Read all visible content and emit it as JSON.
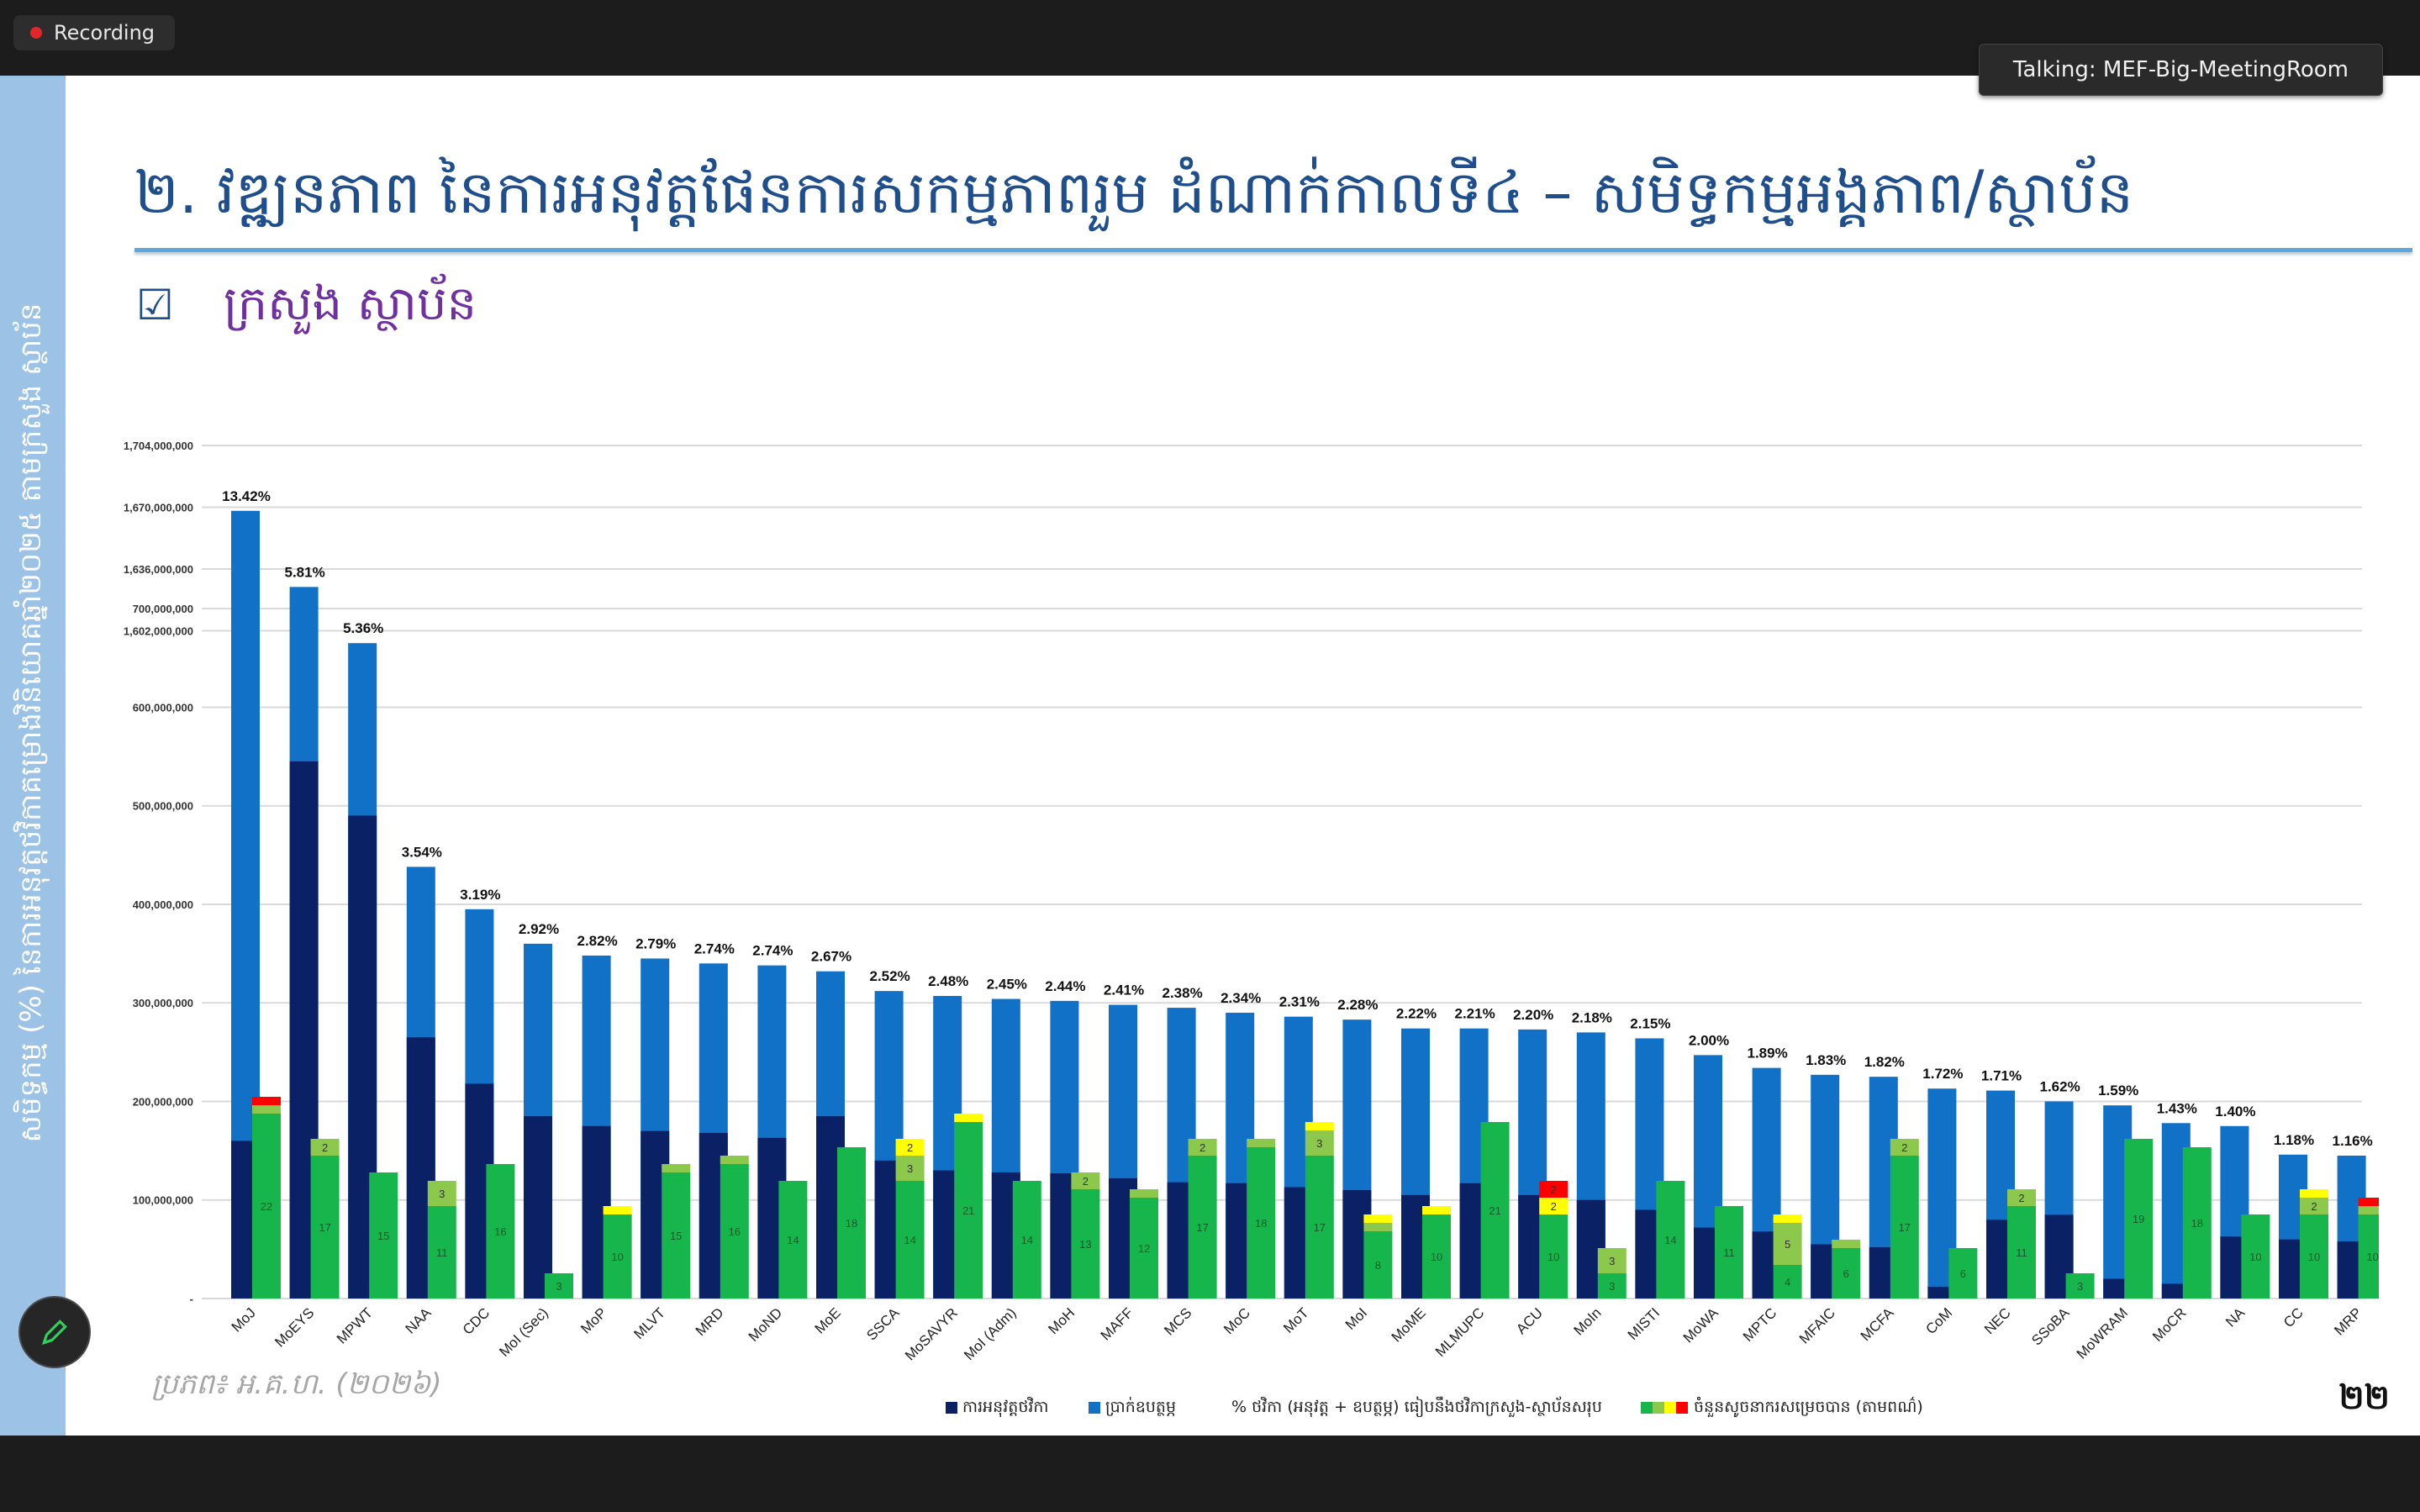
{
  "recording": {
    "label": "Recording"
  },
  "talking": {
    "label": "Talking: MEF-Big-MeetingRoom"
  },
  "slide": {
    "title": "២. វឌ្ឍនភាព នៃការអនុវត្តផែនការសកម្មភាពរួម ដំណាក់កាលទី៤ – សមិទ្ធកម្មអង្គភាព/ស្ថាប័ន",
    "subtitle": "ក្រសួង ស្ថាប័ន",
    "side_text": "សមិទ្ធកម្ម (%) នៃការអនុវត្តថវិកាគម្រោងវិនិយោគឆ្នាំ២០២៥ តាមក្រសួង ស្ថាប័ន",
    "source": "ប្រភព៖ អ.គ.ហ. (២០២៦)",
    "page_number": "២២"
  },
  "colors": {
    "executed": "#0a2166",
    "allocated": "#1071c6",
    "green": "#17b64c",
    "lightgreen": "#8cc84c",
    "yellow": "#ffff00",
    "red": "#ff0000",
    "grid": "#d9d9d9"
  },
  "chart_data": {
    "type": "bar",
    "title": "",
    "y_ticks_upper": [
      "1,704,000,000",
      "1,670,000,000",
      "1,636,000,000",
      "1,602,000,000"
    ],
    "y_ticks_lower": [
      "700,000,000",
      "600,000,000",
      "500,000,000",
      "400,000,000",
      "300,000,000",
      "200,000,000",
      "100,000,000",
      "-"
    ],
    "ylim_upper": [
      1580000000,
      1704000000
    ],
    "ylim_lower": [
      0,
      730000000
    ],
    "categories": [
      "MoJ",
      "MoEYS",
      "MPWT",
      "NAA",
      "CDC",
      "MoI (Sec)",
      "MoP",
      "MLVT",
      "MRD",
      "MoND",
      "MoE",
      "SSCA",
      "MoSAVYR",
      "MoI (Adm)",
      "MoH",
      "MAFF",
      "MCS",
      "MoC",
      "MoT",
      "MoI",
      "MoME",
      "MLMUPC",
      "ACU",
      "MoIn",
      "MISTI",
      "MoWA",
      "MPTC",
      "MFAIC",
      "MCFA",
      "CoM",
      "NEC",
      "SSoBA",
      "MoWRAM",
      "MoCR",
      "NA",
      "CC",
      "MRP"
    ],
    "percent_labels": [
      "13.42%",
      "5.81%",
      "5.36%",
      "3.54%",
      "3.19%",
      "2.92%",
      "2.82%",
      "2.79%",
      "2.74%",
      "2.74%",
      "2.67%",
      "2.52%",
      "2.48%",
      "2.45%",
      "2.44%",
      "2.41%",
      "2.38%",
      "2.34%",
      "2.31%",
      "2.28%",
      "2.22%",
      "2.21%",
      "2.20%",
      "2.18%",
      "2.15%",
      "2.00%",
      "1.89%",
      "1.83%",
      "1.82%",
      "1.72%",
      "1.71%",
      "1.62%",
      "1.59%",
      "1.43%",
      "1.40%",
      "1.18%",
      "1.16%"
    ],
    "series": [
      {
        "name": "ការអនុវត្តថវិកា",
        "values": [
          160000000,
          545000000,
          490000000,
          265000000,
          218000000,
          185000000,
          175000000,
          170000000,
          168000000,
          163000000,
          185000000,
          140000000,
          130000000,
          128000000,
          127000000,
          122000000,
          118000000,
          117000000,
          113000000,
          110000000,
          105000000,
          117000000,
          105000000,
          100000000,
          90000000,
          72000000,
          68000000,
          55000000,
          52000000,
          12000000,
          80000000,
          85000000,
          20000000,
          15000000,
          63000000,
          60000000,
          58000000
        ]
      },
      {
        "name": "ប្រាក់ឧបត្ថម្ភ",
        "values": [
          1668000000,
          722000000,
          665000000,
          438000000,
          395000000,
          360000000,
          348000000,
          345000000,
          340000000,
          338000000,
          332000000,
          312000000,
          307000000,
          304000000,
          302000000,
          298000000,
          295000000,
          290000000,
          286000000,
          283000000,
          274000000,
          274000000,
          273000000,
          270000000,
          264000000,
          247000000,
          234000000,
          227000000,
          225000000,
          213000000,
          211000000,
          200000000,
          196000000,
          178000000,
          175000000,
          146000000,
          145000000
        ]
      }
    ],
    "line_series_legend": "% ថវិកា (អនុវត្ត + ឧបត្ថម្ភ) ធៀបនឹងថវិកាក្រសួង-ស្ថាប័នសរុប",
    "indicator_legend": "ចំនួនសូចនាករសម្រេចបាន (តាមពណ៌)",
    "indicator_unit": 10,
    "indicators": [
      {
        "green": 22,
        "lightgreen": 1,
        "yellow": 0,
        "red": 1
      },
      {
        "green": 17,
        "lightgreen": 2,
        "yellow": 0,
        "red": 0
      },
      {
        "green": 15,
        "lightgreen": 0,
        "yellow": 0,
        "red": 0
      },
      {
        "green": 11,
        "lightgreen": 3,
        "yellow": 0,
        "red": 0
      },
      {
        "green": 16,
        "lightgreen": 0,
        "yellow": 0,
        "red": 0
      },
      {
        "green": 3,
        "lightgreen": 0,
        "yellow": 0,
        "red": 0
      },
      {
        "green": 10,
        "lightgreen": 0,
        "yellow": 1,
        "red": 0
      },
      {
        "green": 15,
        "lightgreen": 1,
        "yellow": 0,
        "red": 0
      },
      {
        "green": 16,
        "lightgreen": 1,
        "yellow": 0,
        "red": 0
      },
      {
        "green": 14,
        "lightgreen": 0,
        "yellow": 0,
        "red": 0
      },
      {
        "green": 18,
        "lightgreen": 0,
        "yellow": 0,
        "red": 0
      },
      {
        "green": 14,
        "lightgreen": 3,
        "yellow": 2,
        "red": 0
      },
      {
        "green": 21,
        "lightgreen": 0,
        "yellow": 1,
        "red": 0
      },
      {
        "green": 14,
        "lightgreen": 0,
        "yellow": 0,
        "red": 0
      },
      {
        "green": 13,
        "lightgreen": 2,
        "yellow": 0,
        "red": 0
      },
      {
        "green": 12,
        "lightgreen": 1,
        "yellow": 0,
        "red": 0
      },
      {
        "green": 17,
        "lightgreen": 2,
        "yellow": 0,
        "red": 0
      },
      {
        "green": 18,
        "lightgreen": 1,
        "yellow": 0,
        "red": 0
      },
      {
        "green": 17,
        "lightgreen": 3,
        "yellow": 1,
        "red": 0
      },
      {
        "green": 8,
        "lightgreen": 1,
        "yellow": 1,
        "red": 0
      },
      {
        "green": 10,
        "lightgreen": 0,
        "yellow": 1,
        "red": 0
      },
      {
        "green": 21,
        "lightgreen": 0,
        "yellow": 0,
        "red": 0
      },
      {
        "green": 10,
        "lightgreen": 0,
        "yellow": 2,
        "red": 2
      },
      {
        "green": 3,
        "lightgreen": 3,
        "yellow": 0,
        "red": 0
      },
      {
        "green": 14,
        "lightgreen": 0,
        "yellow": 0,
        "red": 0
      },
      {
        "green": 11,
        "lightgreen": 0,
        "yellow": 0,
        "red": 0
      },
      {
        "green": 4,
        "lightgreen": 5,
        "yellow": 1,
        "red": 0
      },
      {
        "green": 6,
        "lightgreen": 1,
        "yellow": 0,
        "red": 0
      },
      {
        "green": 17,
        "lightgreen": 2,
        "yellow": 0,
        "red": 0
      },
      {
        "green": 6,
        "lightgreen": 0,
        "yellow": 0,
        "red": 0
      },
      {
        "green": 11,
        "lightgreen": 2,
        "yellow": 0,
        "red": 0
      },
      {
        "green": 3,
        "lightgreen": 0,
        "yellow": 0,
        "red": 0
      },
      {
        "green": 19,
        "lightgreen": 0,
        "yellow": 0,
        "red": 0
      },
      {
        "green": 18,
        "lightgreen": 0,
        "yellow": 0,
        "red": 0
      },
      {
        "green": 10,
        "lightgreen": 0,
        "yellow": 0,
        "red": 0
      },
      {
        "green": 10,
        "lightgreen": 2,
        "yellow": 1,
        "red": 0
      },
      {
        "green": 10,
        "lightgreen": 1,
        "yellow": 0,
        "red": 1
      }
    ]
  }
}
